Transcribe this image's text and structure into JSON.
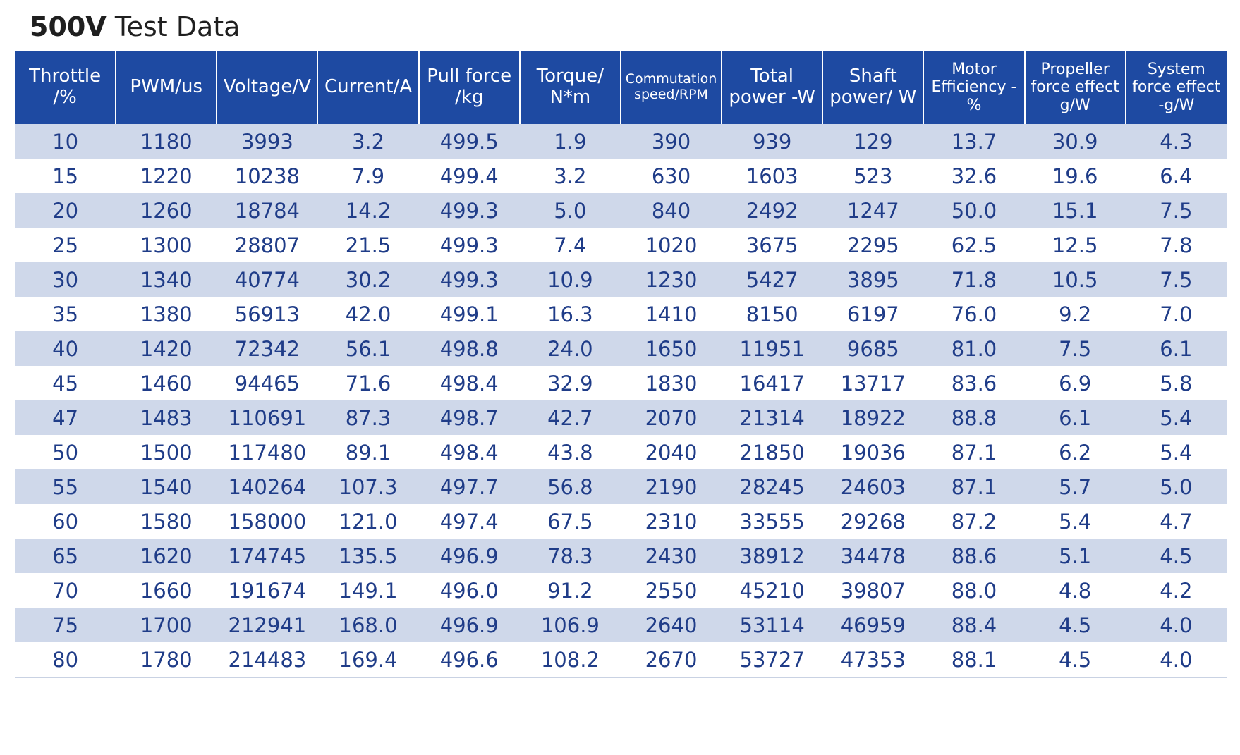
{
  "title": {
    "bold": "500V",
    "rest": "Test Data"
  },
  "columns": [
    {
      "lines": [
        "Throttle",
        "/%"
      ]
    },
    {
      "lines": [
        "PWM/us"
      ]
    },
    {
      "lines": [
        "Voltage/V"
      ]
    },
    {
      "lines": [
        "Current/A"
      ]
    },
    {
      "lines": [
        "Pull force",
        "/kg"
      ]
    },
    {
      "lines": [
        "Torque/",
        "N*m"
      ]
    },
    {
      "lines": [
        "Commutation",
        "speed/RPM"
      ]
    },
    {
      "lines": [
        "Total",
        "power -W"
      ]
    },
    {
      "lines": [
        "Shaft",
        "power/ W"
      ]
    },
    {
      "lines": [
        "Motor",
        "Efficiency -%"
      ]
    },
    {
      "lines": [
        "Propeller",
        "force effect",
        "g/W"
      ]
    },
    {
      "lines": [
        "System",
        "force effect",
        "-g/W"
      ]
    }
  ],
  "rows": [
    [
      "10",
      "1180",
      "3993",
      "3.2",
      "499.5",
      "1.9",
      "390",
      "939",
      "129",
      "13.7",
      "30.9",
      "4.3"
    ],
    [
      "15",
      "1220",
      "10238",
      "7.9",
      "499.4",
      "3.2",
      "630",
      "1603",
      "523",
      "32.6",
      "19.6",
      "6.4"
    ],
    [
      "20",
      "1260",
      "18784",
      "14.2",
      "499.3",
      "5.0",
      "840",
      "2492",
      "1247",
      "50.0",
      "15.1",
      "7.5"
    ],
    [
      "25",
      "1300",
      "28807",
      "21.5",
      "499.3",
      "7.4",
      "1020",
      "3675",
      "2295",
      "62.5",
      "12.5",
      "7.8"
    ],
    [
      "30",
      "1340",
      "40774",
      "30.2",
      "499.3",
      "10.9",
      "1230",
      "5427",
      "3895",
      "71.8",
      "10.5",
      "7.5"
    ],
    [
      "35",
      "1380",
      "56913",
      "42.0",
      "499.1",
      "16.3",
      "1410",
      "8150",
      "6197",
      "76.0",
      "9.2",
      "7.0"
    ],
    [
      "40",
      "1420",
      "72342",
      "56.1",
      "498.8",
      "24.0",
      "1650",
      "11951",
      "9685",
      "81.0",
      "7.5",
      "6.1"
    ],
    [
      "45",
      "1460",
      "94465",
      "71.6",
      "498.4",
      "32.9",
      "1830",
      "16417",
      "13717",
      "83.6",
      "6.9",
      "5.8"
    ],
    [
      "47",
      "1483",
      "110691",
      "87.3",
      "498.7",
      "42.7",
      "2070",
      "21314",
      "18922",
      "88.8",
      "6.1",
      "5.4"
    ],
    [
      "50",
      "1500",
      "117480",
      "89.1",
      "498.4",
      "43.8",
      "2040",
      "21850",
      "19036",
      "87.1",
      "6.2",
      "5.4"
    ],
    [
      "55",
      "1540",
      "140264",
      "107.3",
      "497.7",
      "56.8",
      "2190",
      "28245",
      "24603",
      "87.1",
      "5.7",
      "5.0"
    ],
    [
      "60",
      "1580",
      "158000",
      "121.0",
      "497.4",
      "67.5",
      "2310",
      "33555",
      "29268",
      "87.2",
      "5.4",
      "4.7"
    ],
    [
      "65",
      "1620",
      "174745",
      "135.5",
      "496.9",
      "78.3",
      "2430",
      "38912",
      "34478",
      "88.6",
      "5.1",
      "4.5"
    ],
    [
      "70",
      "1660",
      "191674",
      "149.1",
      "496.0",
      "91.2",
      "2550",
      "45210",
      "39807",
      "88.0",
      "4.8",
      "4.2"
    ],
    [
      "75",
      "1700",
      "212941",
      "168.0",
      "496.9",
      "106.9",
      "2640",
      "53114",
      "46959",
      "88.4",
      "4.5",
      "4.0"
    ],
    [
      "80",
      "1780",
      "214483",
      "169.4",
      "496.6",
      "108.2",
      "2670",
      "53727",
      "47353",
      "88.1",
      "4.5",
      "4.0"
    ]
  ]
}
